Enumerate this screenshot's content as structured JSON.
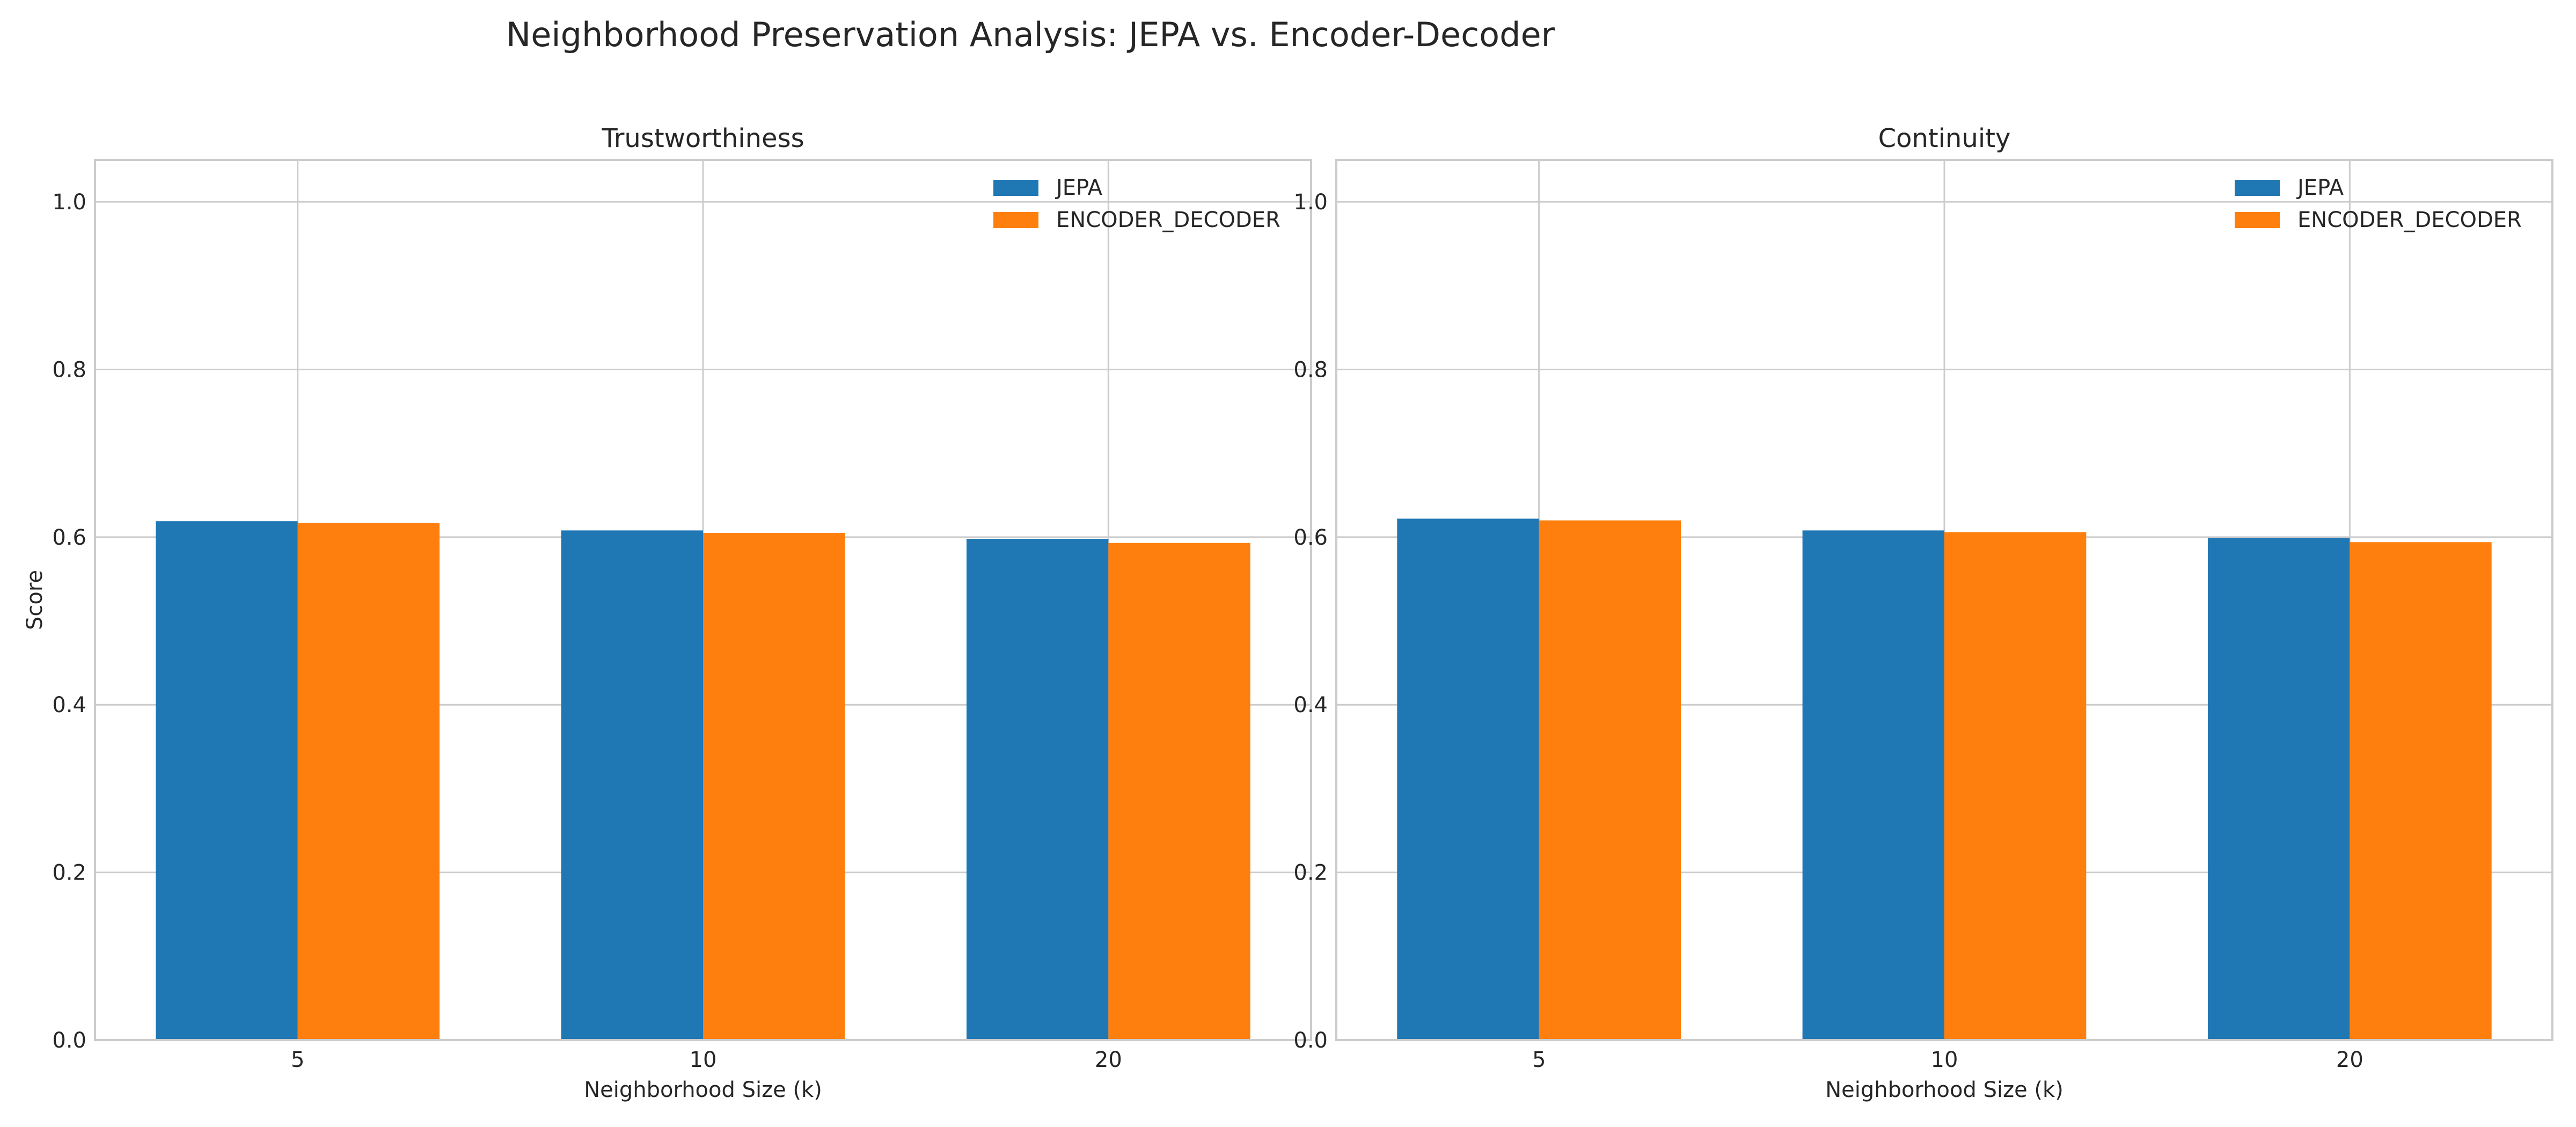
{
  "figure": {
    "title": "Neighborhood Preservation Analysis: JEPA vs. Encoder-Decoder"
  },
  "chart_data": [
    {
      "type": "bar",
      "title": "Trustworthiness",
      "xlabel": "Neighborhood Size (k)",
      "ylabel": "Score",
      "categories": [
        "5",
        "10",
        "20"
      ],
      "ylim": [
        0,
        1.05
      ],
      "yticks": [
        "0.0",
        "0.2",
        "0.4",
        "0.6",
        "0.8",
        "1.0"
      ],
      "grid": true,
      "legend_position": "top-right",
      "series": [
        {
          "name": "JEPA",
          "color": "#1f77b4",
          "values": [
            0.619,
            0.608,
            0.598
          ]
        },
        {
          "name": "ENCODER_DECODER",
          "color": "#ff7f0e",
          "values": [
            0.617,
            0.605,
            0.593
          ]
        }
      ]
    },
    {
      "type": "bar",
      "title": "Continuity",
      "xlabel": "Neighborhood Size (k)",
      "ylabel": "",
      "categories": [
        "5",
        "10",
        "20"
      ],
      "ylim": [
        0,
        1.05
      ],
      "yticks": [
        "0.0",
        "0.2",
        "0.4",
        "0.6",
        "0.8",
        "1.0"
      ],
      "grid": true,
      "legend_position": "top-right",
      "series": [
        {
          "name": "JEPA",
          "color": "#1f77b4",
          "values": [
            0.622,
            0.608,
            0.599
          ]
        },
        {
          "name": "ENCODER_DECODER",
          "color": "#ff7f0e",
          "values": [
            0.62,
            0.606,
            0.594
          ]
        }
      ]
    }
  ]
}
